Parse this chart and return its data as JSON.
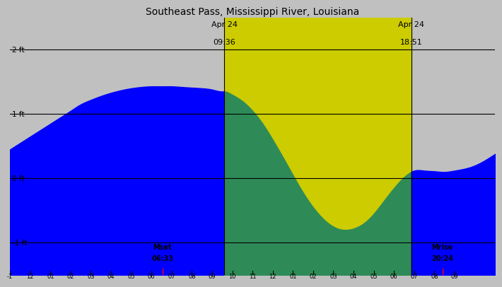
{
  "title": "Southeast Pass, Mississippi River, Louisiana",
  "title_fontsize": 10,
  "background_gray": "#c0c0c0",
  "background_yellow": "#cccc00",
  "color_blue": "#0000ff",
  "color_green": "#2e8b57",
  "sunrise_label_line1": "Apr 24",
  "sunrise_label_line2": "09:36",
  "sunset_label_line1": "Apr 24",
  "sunset_label_line2": "18:51",
  "moonset_label": "Mset\n06:33",
  "moonrise_label": "Mrise\n20:24",
  "x_tick_labels": [
    "-1",
    "12",
    "01",
    "02",
    "03",
    "04",
    "05",
    "06",
    "07",
    "08",
    "09",
    "10",
    "11",
    "12",
    "01",
    "02",
    "03",
    "04",
    "05",
    "06",
    "07",
    "08",
    "09"
  ],
  "sunrise_x": 9.6,
  "sunset_x": 18.85,
  "moonset_x": 6.55,
  "moonrise_x": 20.4,
  "tide_x": [
    -1,
    -0.5,
    0,
    0.5,
    1,
    1.5,
    2,
    2.5,
    3,
    3.5,
    4,
    4.5,
    5,
    5.5,
    6,
    6.5,
    7,
    7.5,
    8,
    8.5,
    9,
    9.5,
    9.6,
    10,
    10.5,
    11,
    11.5,
    12,
    12.5,
    13,
    13.5,
    14,
    14.5,
    15,
    15.5,
    16,
    16.5,
    17,
    17.5,
    18,
    18.5,
    18.85,
    19,
    19.5,
    20,
    20.4,
    20.5,
    21,
    21.5,
    22,
    22.5,
    23
  ],
  "tide_y": [
    0.45,
    0.55,
    0.65,
    0.75,
    0.85,
    0.95,
    1.05,
    1.15,
    1.22,
    1.28,
    1.33,
    1.37,
    1.4,
    1.42,
    1.43,
    1.43,
    1.43,
    1.42,
    1.41,
    1.4,
    1.38,
    1.35,
    1.35,
    1.3,
    1.2,
    1.05,
    0.85,
    0.6,
    0.33,
    0.05,
    -0.22,
    -0.45,
    -0.63,
    -0.75,
    -0.8,
    -0.78,
    -0.7,
    -0.55,
    -0.35,
    -0.15,
    0.02,
    0.1,
    0.12,
    0.12,
    0.11,
    0.1,
    0.1,
    0.12,
    0.15,
    0.2,
    0.28,
    0.38
  ],
  "x_min": -1,
  "x_max": 23,
  "y_min": -1.5,
  "y_max": 2.5,
  "hline_y": [
    2.0,
    1.0,
    0.0,
    -1.0
  ],
  "fig_width": 7.0,
  "fig_height": 4.0,
  "dpi": 100
}
